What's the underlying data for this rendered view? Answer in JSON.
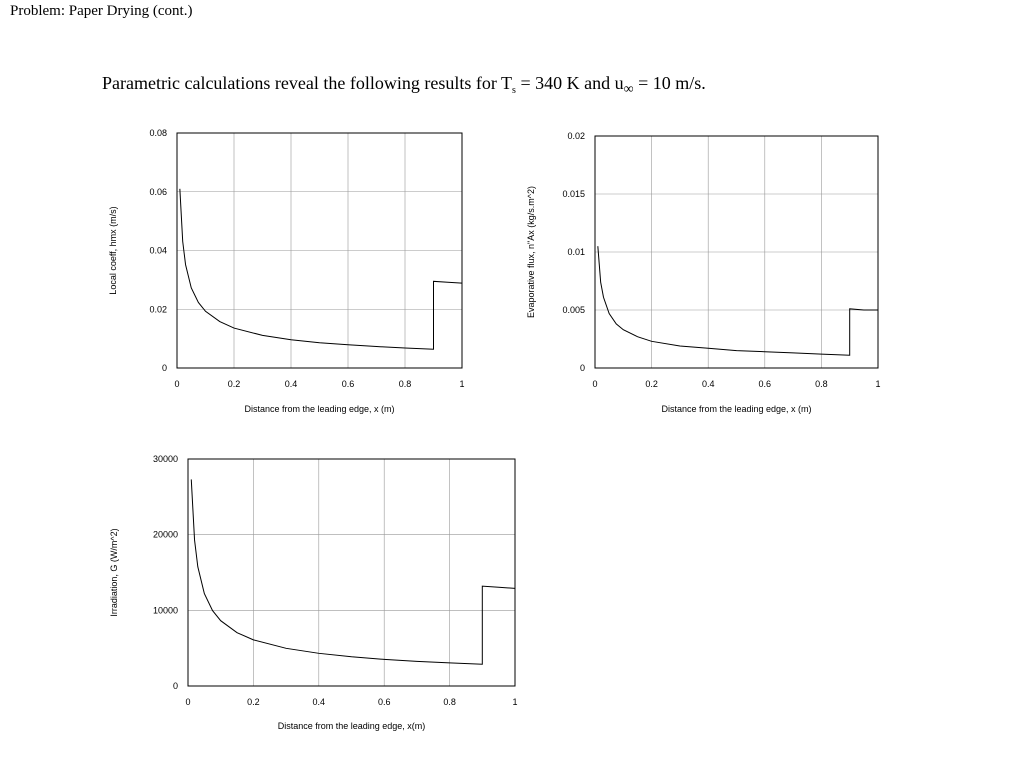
{
  "header": {
    "title": "Problem:  Paper Drying (cont.)"
  },
  "intro": {
    "before": "Parametric calculations reveal the following results for T",
    "sub1": "s",
    "mid": " = 340 K and u",
    "sub2": "∞",
    "after": " = 10 m/s."
  },
  "chart_data": [
    {
      "type": "line",
      "y_label": "Local coeff, hmx (m/s)",
      "x_label": "Distance from the leading edge, x (m)",
      "color": "#000000",
      "grid": true,
      "x": [
        0.01,
        0.02,
        0.03,
        0.05,
        0.075,
        0.1,
        0.15,
        0.2,
        0.3,
        0.4,
        0.5,
        0.6,
        0.7,
        0.8,
        0.9,
        0.9,
        0.95,
        1.0
      ],
      "values": [
        0.061,
        0.0431,
        0.0352,
        0.0273,
        0.0223,
        0.0193,
        0.0158,
        0.0136,
        0.0111,
        0.0096,
        0.0086,
        0.0079,
        0.0073,
        0.0068,
        0.0064,
        0.0295,
        0.0292,
        0.0289
      ],
      "xlim": [
        0,
        1
      ],
      "xticks": [
        0,
        0.2,
        0.4,
        0.6,
        0.8,
        1
      ],
      "ylim": [
        0,
        0.08
      ],
      "yticks": [
        0,
        0.02,
        0.04,
        0.06,
        0.08
      ]
    },
    {
      "type": "line",
      "y_label": "Evaporative flux, n\"Ax (kg/s.m^2)",
      "x_label": "Distance from the leading edge, x (m)",
      "color": "#000000",
      "grid": true,
      "x": [
        0.01,
        0.02,
        0.03,
        0.05,
        0.075,
        0.1,
        0.15,
        0.2,
        0.3,
        0.4,
        0.5,
        0.6,
        0.7,
        0.8,
        0.9,
        0.9,
        0.95,
        1.0
      ],
      "values": [
        0.0105,
        0.0074,
        0.0061,
        0.0047,
        0.0038,
        0.0033,
        0.0027,
        0.0023,
        0.0019,
        0.0017,
        0.0015,
        0.0014,
        0.0013,
        0.0012,
        0.0011,
        0.0051,
        0.005,
        0.005
      ],
      "xlim": [
        0,
        1
      ],
      "xticks": [
        0,
        0.2,
        0.4,
        0.6,
        0.8,
        1
      ],
      "ylim": [
        0,
        0.02
      ],
      "yticks": [
        0,
        0.005,
        0.01,
        0.015,
        0.02
      ]
    },
    {
      "type": "line",
      "y_label": "Irradiation, G (W/m^2)",
      "x_label": "Distance from the leading edge, x(m)",
      "color": "#000000",
      "grid": true,
      "x": [
        0.01,
        0.02,
        0.03,
        0.05,
        0.075,
        0.1,
        0.15,
        0.2,
        0.3,
        0.4,
        0.5,
        0.6,
        0.7,
        0.8,
        0.9,
        0.9,
        0.95,
        1.0
      ],
      "values": [
        27300,
        19300,
        15760,
        12210,
        9970,
        8630,
        7050,
        6100,
        4980,
        4320,
        3860,
        3520,
        3260,
        3050,
        2880,
        13200,
        13050,
        12900
      ],
      "xlim": [
        0,
        1
      ],
      "xticks": [
        0,
        0.2,
        0.4,
        0.6,
        0.8,
        1
      ],
      "ylim": [
        0,
        30000
      ],
      "yticks": [
        0,
        10000,
        20000,
        30000
      ]
    }
  ]
}
